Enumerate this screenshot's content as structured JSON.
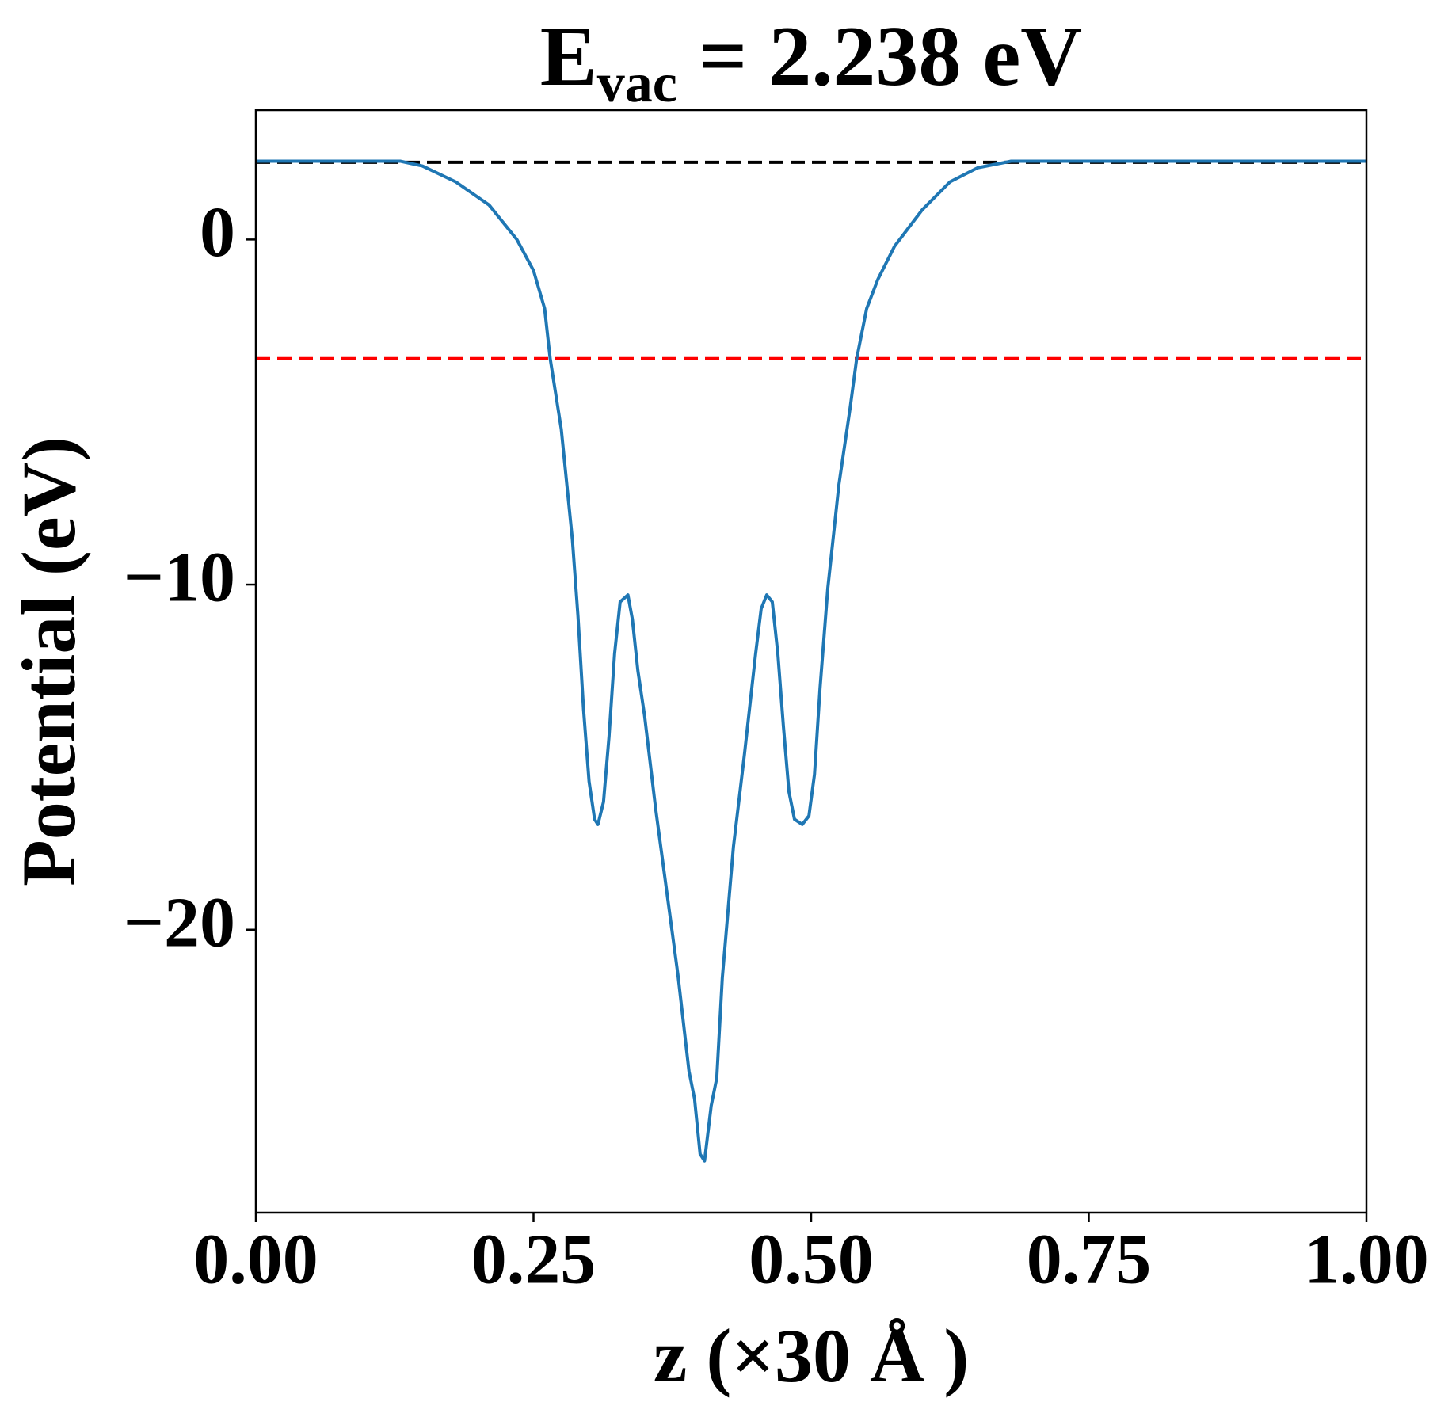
{
  "chart_data": {
    "type": "line",
    "title": {
      "main": "E",
      "sub": "vac",
      "rest": " = 2.238 eV"
    },
    "xlabel": "z (×30 Å )",
    "ylabel": "Potential (eV)",
    "xlim": [
      0,
      1
    ],
    "ylim": [
      -28.2,
      3.75
    ],
    "xticks": [
      {
        "value": 0,
        "label": "0.00"
      },
      {
        "value": 0.25,
        "label": "0.25"
      },
      {
        "value": 0.5,
        "label": "0.50"
      },
      {
        "value": 0.75,
        "label": "0.75"
      },
      {
        "value": 1,
        "label": "1.00"
      }
    ],
    "yticks": [
      0,
      {
        "value": -10,
        "label": "−10"
      },
      {
        "value": -20,
        "label": "−20"
      }
    ],
    "hlines": [
      {
        "value": 2.238,
        "color": "#000000"
      },
      {
        "value": -3.45,
        "color": "#ff0000"
      }
    ],
    "series": [
      {
        "color": "#1f77b4",
        "x": [
          0,
          0.13,
          0.15,
          0.18,
          0.21,
          0.235,
          0.25,
          0.26,
          0.265,
          0.275,
          0.285,
          0.29,
          0.295,
          0.3,
          0.305,
          0.308,
          0.313,
          0.318,
          0.323,
          0.328,
          0.335,
          0.339,
          0.344,
          0.35,
          0.36,
          0.37,
          0.38,
          0.39,
          0.395,
          0.4,
          0.404,
          0.41,
          0.415,
          0.42,
          0.43,
          0.44,
          0.45,
          0.455,
          0.46,
          0.465,
          0.47,
          0.475,
          0.48,
          0.485,
          0.492,
          0.498,
          0.503,
          0.508,
          0.515,
          0.525,
          0.535,
          0.541,
          0.55,
          0.56,
          0.575,
          0.6,
          0.625,
          0.65,
          0.68,
          1
        ],
        "values": [
          2.27,
          2.27,
          2.13,
          1.67,
          1.0,
          0,
          -0.9,
          -2.0,
          -3.45,
          -5.5,
          -8.7,
          -10.9,
          -13.6,
          -15.7,
          -16.8,
          -16.95,
          -16.3,
          -14.4,
          -12.0,
          -10.5,
          -10.3,
          -11.0,
          -12.5,
          -13.8,
          -16.5,
          -18.9,
          -21.3,
          -24.1,
          -24.9,
          -26.5,
          -26.7,
          -25.1,
          -24.3,
          -21.4,
          -17.6,
          -14.9,
          -12.0,
          -10.7,
          -10.3,
          -10.5,
          -12.0,
          -14.1,
          -16.0,
          -16.8,
          -16.95,
          -16.7,
          -15.5,
          -13.0,
          -10.1,
          -7.1,
          -4.9,
          -3.45,
          -2.0,
          -1.16,
          -0.2,
          0.86,
          1.67,
          2.08,
          2.27,
          2.27
        ]
      }
    ]
  }
}
